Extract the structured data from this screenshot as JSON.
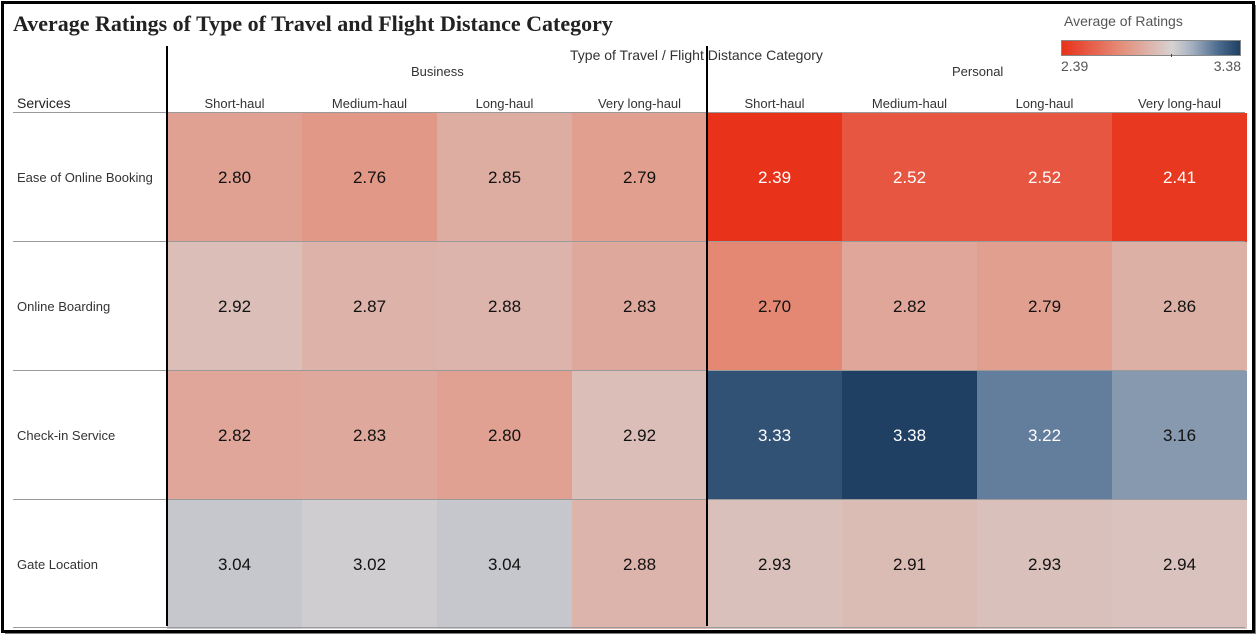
{
  "chart_data": {
    "type": "heatmap",
    "title": "Average Ratings of Type of Travel and Flight Distance Category",
    "column_axis_title": "Type of Travel  /  Flight Distance Category",
    "row_axis_title": "Services",
    "groups": [
      "Business",
      "Personal"
    ],
    "columns": [
      {
        "group": "Business",
        "label": "Short-haul"
      },
      {
        "group": "Business",
        "label": "Medium-haul"
      },
      {
        "group": "Business",
        "label": "Long-haul"
      },
      {
        "group": "Business",
        "label": "Very long-haul"
      },
      {
        "group": "Personal",
        "label": "Short-haul"
      },
      {
        "group": "Personal",
        "label": "Medium-haul"
      },
      {
        "group": "Personal",
        "label": "Long-haul"
      },
      {
        "group": "Personal",
        "label": "Very long-haul"
      }
    ],
    "rows": [
      "Ease of Online Booking",
      "Online Boarding",
      "Check-in Service",
      "Gate Location"
    ],
    "values": [
      [
        2.8,
        2.76,
        2.85,
        2.79,
        2.39,
        2.52,
        2.52,
        2.41
      ],
      [
        2.92,
        2.87,
        2.88,
        2.83,
        2.7,
        2.82,
        2.79,
        2.86
      ],
      [
        2.82,
        2.83,
        2.8,
        2.92,
        3.33,
        3.38,
        3.22,
        3.16
      ],
      [
        3.04,
        3.02,
        3.04,
        2.88,
        2.93,
        2.91,
        2.93,
        2.94
      ]
    ],
    "legend": {
      "title": "Average of Ratings",
      "min": 2.39,
      "max": 3.38,
      "min_label": "2.39",
      "max_label": "3.38",
      "placement": "top-right"
    },
    "colors": {
      "low": "#e8321a",
      "mid": "#d7d2d2",
      "high": "#1f3f63"
    }
  }
}
